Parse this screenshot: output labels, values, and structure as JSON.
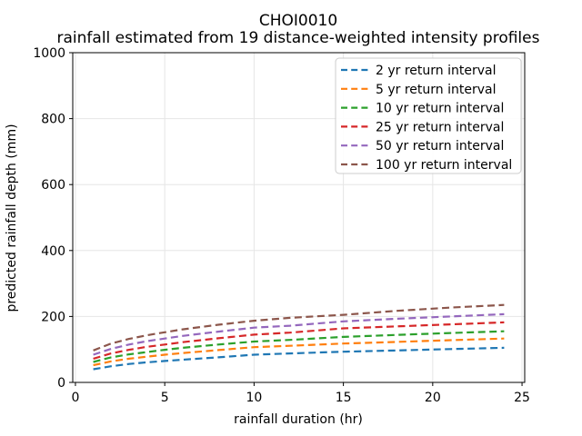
{
  "figure": {
    "title_line1": "CHOI0010",
    "title_line2": "rainfall estimated from 19 distance-weighted intensity profiles"
  },
  "chart_data": {
    "type": "line",
    "title": "CHOI0010",
    "subtitle": "rainfall estimated from 19 distance-weighted intensity profiles",
    "xlabel": "rainfall duration (hr)",
    "ylabel": "predicted rainfall depth (mm)",
    "xlim": [
      -0.15,
      25.15
    ],
    "ylim": [
      0,
      1000
    ],
    "xticks": [
      0,
      5,
      10,
      15,
      20,
      25
    ],
    "yticks": [
      0,
      200,
      400,
      600,
      800,
      1000
    ],
    "grid": true,
    "grid_color": "#e6e6e6",
    "spine_color": "#000000",
    "background_color": "#ffffff",
    "legend_position": "upper right",
    "legend_edge_color": "#cccccc",
    "line_style": "dashed",
    "x": [
      1,
      2,
      3,
      4,
      5,
      6,
      8,
      10,
      12,
      15,
      18,
      21,
      24
    ],
    "series": [
      {
        "name": "2 yr return interval",
        "color": "#1f77b4",
        "values": [
          40,
          49,
          56,
          61,
          65,
          69,
          76,
          84,
          88,
          93,
          97,
          101,
          105
        ]
      },
      {
        "name": "5 yr return interval",
        "color": "#ff7f0e",
        "values": [
          52,
          64,
          72,
          78,
          84,
          89,
          98,
          107,
          111,
          118,
          123,
          128,
          133
        ]
      },
      {
        "name": "10 yr return interval",
        "color": "#2ca02c",
        "values": [
          62,
          76,
          85,
          92,
          99,
          105,
          115,
          124,
          129,
          138,
          144,
          150,
          155
        ]
      },
      {
        "name": "25 yr return interval",
        "color": "#d62728",
        "values": [
          72,
          88,
          99,
          108,
          115,
          122,
          134,
          145,
          151,
          164,
          170,
          176,
          182
        ]
      },
      {
        "name": "50 yr return interval",
        "color": "#9467bd",
        "values": [
          84,
          102,
          115,
          125,
          133,
          141,
          154,
          166,
          172,
          185,
          193,
          200,
          207
        ]
      },
      {
        "name": "100 yr return interval",
        "color": "#8c564b",
        "values": [
          97,
          118,
          132,
          143,
          152,
          161,
          175,
          187,
          196,
          205,
          217,
          227,
          235
        ]
      }
    ]
  }
}
